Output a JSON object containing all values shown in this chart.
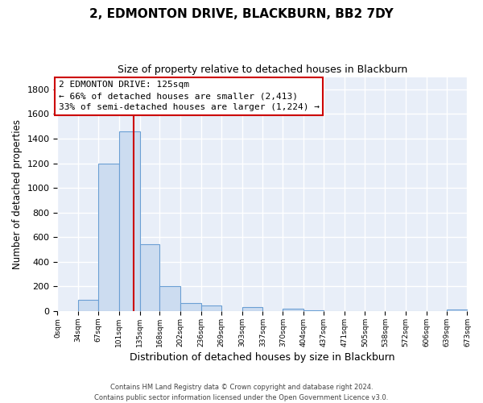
{
  "title": "2, EDMONTON DRIVE, BLACKBURN, BB2 7DY",
  "subtitle": "Size of property relative to detached houses in Blackburn",
  "xlabel": "Distribution of detached houses by size in Blackburn",
  "ylabel": "Number of detached properties",
  "bar_edges": [
    0,
    34,
    67,
    101,
    135,
    168,
    202,
    236,
    269,
    303,
    337,
    370,
    404,
    437,
    471,
    505,
    538,
    572,
    606,
    639,
    673
  ],
  "bar_heights": [
    0,
    90,
    1200,
    1460,
    540,
    200,
    65,
    47,
    0,
    30,
    0,
    20,
    10,
    0,
    0,
    0,
    0,
    0,
    0,
    15
  ],
  "bar_color": "#ccdcf0",
  "bar_edge_color": "#6b9fd4",
  "property_line_x": 125,
  "property_line_color": "#cc0000",
  "ylim": [
    0,
    1900
  ],
  "yticks": [
    0,
    200,
    400,
    600,
    800,
    1000,
    1200,
    1400,
    1600,
    1800
  ],
  "annotation_title": "2 EDMONTON DRIVE: 125sqm",
  "annotation_line1": "← 66% of detached houses are smaller (2,413)",
  "annotation_line2": "33% of semi-detached houses are larger (1,224) →",
  "annotation_box_facecolor": "#ffffff",
  "annotation_box_edgecolor": "#cc0000",
  "footer_line1": "Contains HM Land Registry data © Crown copyright and database right 2024.",
  "footer_line2": "Contains public sector information licensed under the Open Government Licence v3.0.",
  "fig_facecolor": "#ffffff",
  "axes_facecolor": "#e8eef8",
  "grid_color": "#ffffff",
  "tick_labels": [
    "0sqm",
    "34sqm",
    "67sqm",
    "101sqm",
    "135sqm",
    "168sqm",
    "202sqm",
    "236sqm",
    "269sqm",
    "303sqm",
    "337sqm",
    "370sqm",
    "404sqm",
    "437sqm",
    "471sqm",
    "505sqm",
    "538sqm",
    "572sqm",
    "606sqm",
    "639sqm",
    "673sqm"
  ]
}
